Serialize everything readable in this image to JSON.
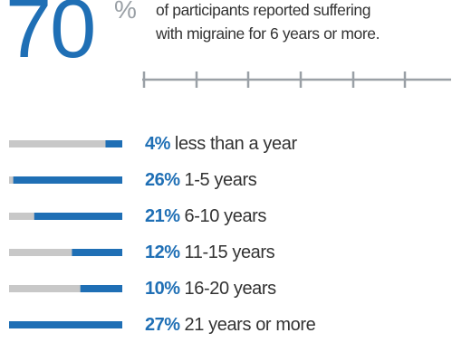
{
  "header": {
    "big_value": "70",
    "big_unit": "%",
    "headline_line1": "of participants reported suffering",
    "headline_line2": "with migraine for 6 years or more."
  },
  "chart_data": {
    "type": "bar",
    "title": "",
    "categories": [
      "less than a year",
      "1-5 years",
      "6-10 years",
      "11-15 years",
      "16-20 years",
      "21 years or more"
    ],
    "values": [
      4,
      26,
      21,
      12,
      10,
      27
    ],
    "value_labels": [
      "4%",
      "26%",
      "21%",
      "12%",
      "10%",
      "27%"
    ],
    "unit": "%",
    "ylim": [
      0,
      27
    ],
    "colors": {
      "bar": "#1f6fb5",
      "track": "#c8c8c8",
      "scale": "#9aa0a6"
    }
  }
}
